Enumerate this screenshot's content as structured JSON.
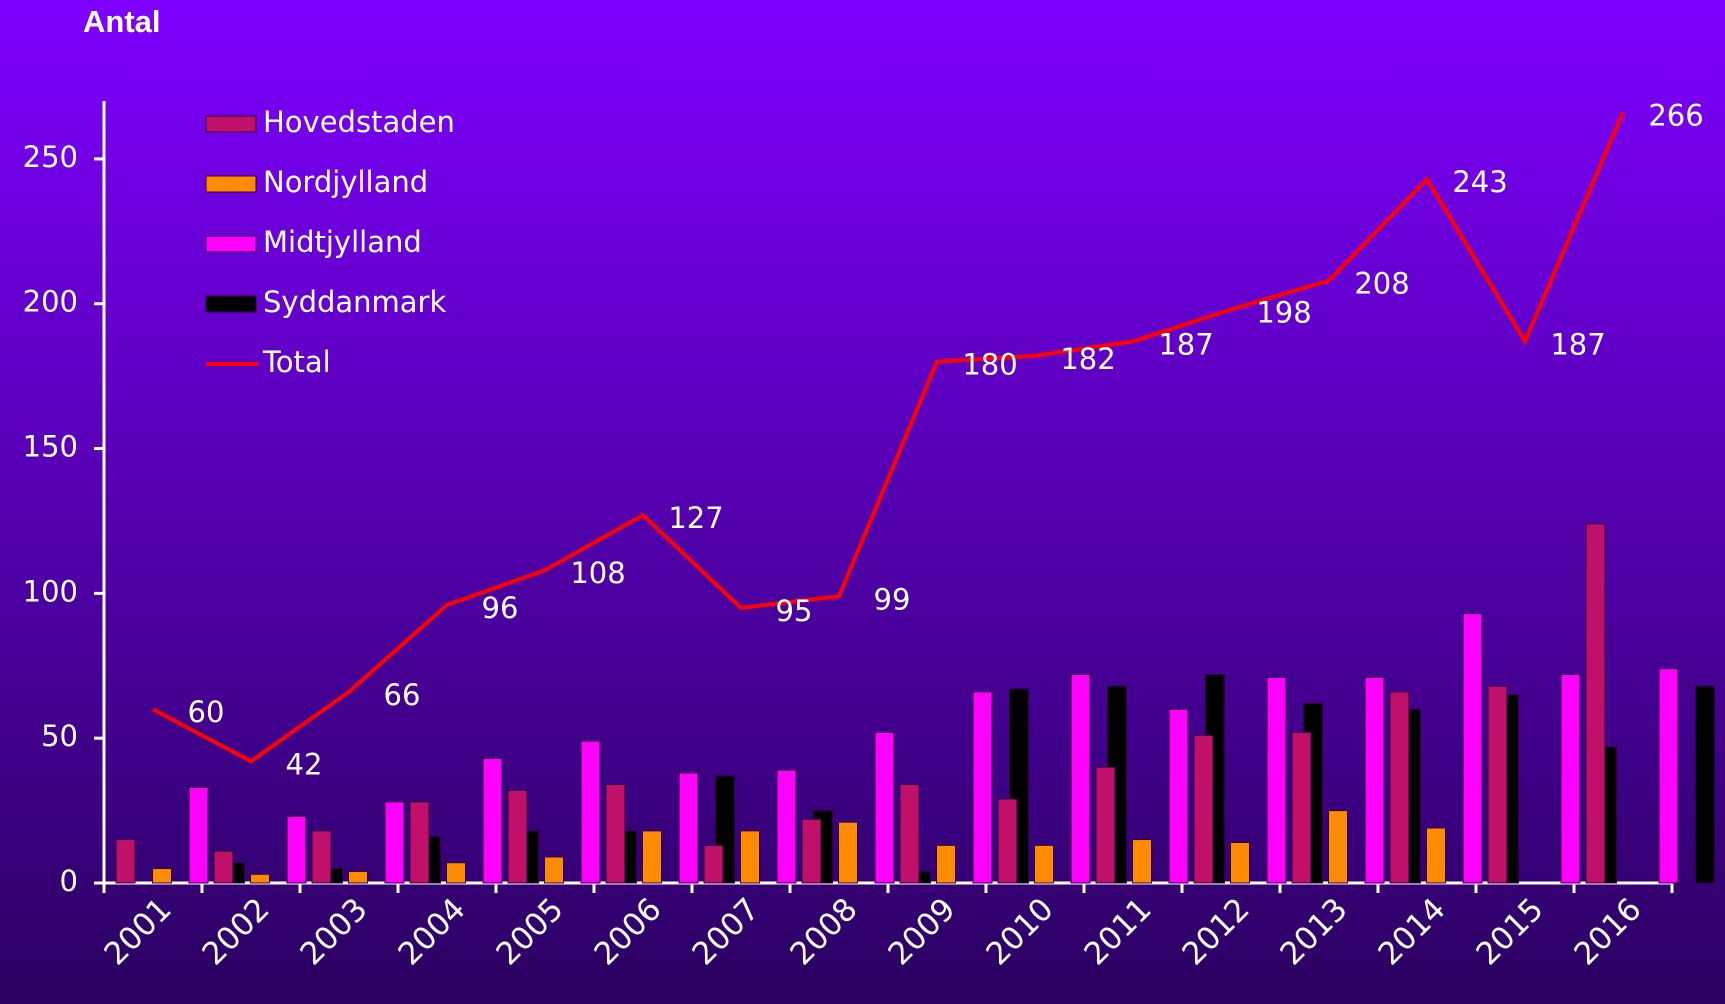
{
  "chart_data": {
    "type": "bar",
    "title": "Antal",
    "categories": [
      "2001",
      "2002",
      "2003",
      "2004",
      "2005",
      "2006",
      "2007",
      "2008",
      "2009",
      "2010",
      "2011",
      "2012",
      "2013",
      "2014",
      "2015",
      "2016"
    ],
    "series": [
      {
        "name": "Hovedstaden",
        "color": "#c0106a",
        "values": [
          15,
          11,
          18,
          28,
          32,
          34,
          13,
          22,
          34,
          29,
          40,
          51,
          52,
          66,
          68,
          124
        ]
      },
      {
        "name": "Nordjylland",
        "color": "#ff8c00",
        "values": [
          5,
          3,
          4,
          7,
          9,
          18,
          18,
          21,
          13,
          13,
          15,
          14,
          25,
          19,
          0,
          0
        ]
      },
      {
        "name": "Midtjylland",
        "color": "#ff00ff",
        "values": [
          33,
          23,
          28,
          43,
          49,
          38,
          39,
          52,
          66,
          72,
          60,
          71,
          71,
          93,
          72,
          74
        ]
      },
      {
        "name": "Syddanmark",
        "color": "#000000",
        "values": [
          7,
          5,
          16,
          18,
          18,
          37,
          25,
          4,
          67,
          68,
          72,
          62,
          60,
          65,
          47,
          68
        ]
      },
      {
        "name": "Total",
        "color": "#ff0000",
        "type": "line",
        "values": [
          60,
          42,
          66,
          96,
          108,
          127,
          95,
          99,
          180,
          182,
          187,
          198,
          208,
          243,
          187,
          266
        ]
      }
    ],
    "ylim": [
      0,
      270
    ],
    "yticks": [
      0,
      50,
      100,
      150,
      200,
      250
    ],
    "legend": "upper left"
  }
}
